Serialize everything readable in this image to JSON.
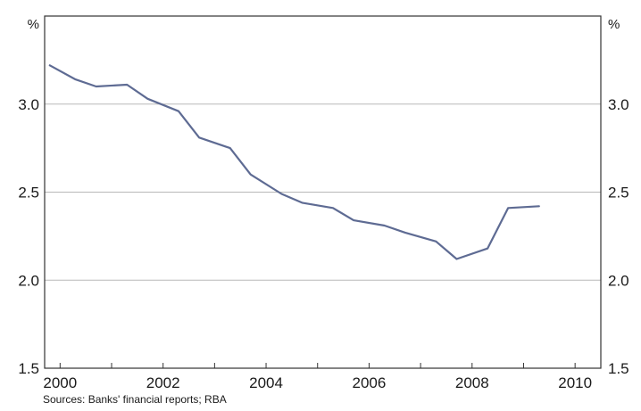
{
  "chart_data": {
    "type": "line",
    "title": "",
    "xlabel": "",
    "ylabel": "",
    "y_unit_left": "%",
    "y_unit_right": "%",
    "xlim": [
      1999.7,
      2010.5
    ],
    "ylim": [
      1.5,
      3.5
    ],
    "x_ticks": [
      2000,
      2002,
      2004,
      2006,
      2008,
      2010
    ],
    "x_tick_labels": [
      "2000",
      "2002",
      "2004",
      "2006",
      "2008",
      "2010"
    ],
    "y_ticks": [
      1.5,
      2.0,
      2.5,
      3.0
    ],
    "y_tick_labels": [
      "1.5",
      "2.0",
      "2.5",
      "3.0"
    ],
    "grid": "horizontal",
    "colors": {
      "line": "#5e6b93",
      "grid": "#b8b8b8",
      "axis": "#333333"
    },
    "series": [
      {
        "x": [
          1999.8,
          2000.3,
          2000.7,
          2001.3,
          2001.7,
          2002.3,
          2002.7,
          2003.3,
          2003.7,
          2004.3,
          2004.7,
          2005.3,
          2005.7,
          2006.3,
          2006.7,
          2007.3,
          2007.7,
          2008.3,
          2008.7,
          2009.3
        ],
        "y": [
          3.22,
          3.14,
          3.1,
          3.11,
          3.03,
          2.96,
          2.81,
          2.75,
          2.6,
          2.49,
          2.44,
          2.41,
          2.34,
          2.31,
          2.27,
          2.22,
          2.12,
          2.18,
          2.41,
          2.42
        ]
      }
    ]
  },
  "footer": {
    "source": "Sources: Banks' financial reports; RBA"
  }
}
